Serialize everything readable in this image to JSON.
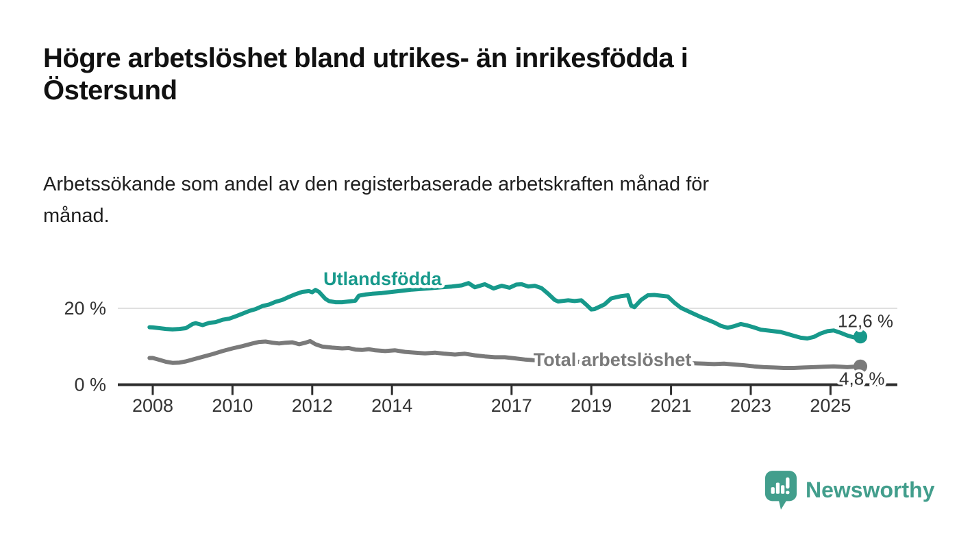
{
  "chart_data": {
    "type": "line",
    "title": "Högre arbetslöshet bland utrikes- än inrikesfödda i\nÖstersund",
    "subtitle": "Arbetssökande som andel av den registerbaserade arbetskraften månad för\nmånad.",
    "xlabel": "",
    "ylabel": "",
    "x_unit": "year (decimal, monthly samples)",
    "y_unit": "percent",
    "xlim": [
      2007.9,
      2026.7
    ],
    "ylim": [
      0,
      30
    ],
    "grid": "single horizontal gridline at 20 %",
    "legend_position": "inline labels on lines",
    "xticks": [
      {
        "value": 2008,
        "label": "2008"
      },
      {
        "value": 2010,
        "label": "2010"
      },
      {
        "value": 2012,
        "label": "2012"
      },
      {
        "value": 2014,
        "label": "2014"
      },
      {
        "value": 2017,
        "label": "2017"
      },
      {
        "value": 2019,
        "label": "2019"
      },
      {
        "value": 2021,
        "label": "2021"
      },
      {
        "value": 2023,
        "label": "2023"
      },
      {
        "value": 2025,
        "label": "2025"
      }
    ],
    "yticks": [
      {
        "value": 20,
        "label": "20 %"
      },
      {
        "value": 0,
        "label": "0 %"
      }
    ],
    "series": [
      {
        "name": "Utlandsfödda",
        "color": "#17998b",
        "end_label": "12,6 %",
        "end_value": 12.6,
        "label_anchor": {
          "x": 2012.28,
          "y": 26.1
        },
        "end_label_offset": {
          "dx": -33,
          "dy": -14
        },
        "points": [
          [
            2007.92,
            15.05
          ],
          [
            2008.0,
            15.0
          ],
          [
            2008.17,
            14.8
          ],
          [
            2008.33,
            14.6
          ],
          [
            2008.5,
            14.5
          ],
          [
            2008.67,
            14.6
          ],
          [
            2008.83,
            14.8
          ],
          [
            2009.0,
            15.9
          ],
          [
            2009.08,
            16.1
          ],
          [
            2009.25,
            15.6
          ],
          [
            2009.42,
            16.2
          ],
          [
            2009.58,
            16.4
          ],
          [
            2009.75,
            17.0
          ],
          [
            2009.92,
            17.3
          ],
          [
            2010.08,
            17.9
          ],
          [
            2010.25,
            18.6
          ],
          [
            2010.42,
            19.3
          ],
          [
            2010.58,
            19.8
          ],
          [
            2010.75,
            20.6
          ],
          [
            2010.92,
            21.0
          ],
          [
            2011.08,
            21.7
          ],
          [
            2011.25,
            22.2
          ],
          [
            2011.42,
            23.0
          ],
          [
            2011.58,
            23.7
          ],
          [
            2011.75,
            24.3
          ],
          [
            2011.92,
            24.5
          ],
          [
            2012.0,
            24.2
          ],
          [
            2012.08,
            24.8
          ],
          [
            2012.17,
            24.3
          ],
          [
            2012.33,
            22.5
          ],
          [
            2012.42,
            21.9
          ],
          [
            2012.58,
            21.6
          ],
          [
            2012.75,
            21.6
          ],
          [
            2012.92,
            21.8
          ],
          [
            2013.08,
            22.0
          ],
          [
            2013.17,
            23.3
          ],
          [
            2013.33,
            23.6
          ],
          [
            2013.5,
            23.8
          ],
          [
            2013.75,
            24.0
          ],
          [
            2014.0,
            24.3
          ],
          [
            2014.25,
            24.6
          ],
          [
            2014.5,
            24.9
          ],
          [
            2014.75,
            25.1
          ],
          [
            2015.0,
            25.3
          ],
          [
            2015.25,
            25.5
          ],
          [
            2015.5,
            25.7
          ],
          [
            2015.75,
            26.0
          ],
          [
            2015.92,
            26.6
          ],
          [
            2016.08,
            25.5
          ],
          [
            2016.33,
            26.3
          ],
          [
            2016.55,
            25.2
          ],
          [
            2016.75,
            25.9
          ],
          [
            2016.95,
            25.4
          ],
          [
            2017.12,
            26.2
          ],
          [
            2017.25,
            26.3
          ],
          [
            2017.42,
            25.7
          ],
          [
            2017.58,
            25.9
          ],
          [
            2017.75,
            25.3
          ],
          [
            2017.92,
            23.8
          ],
          [
            2018.08,
            22.2
          ],
          [
            2018.17,
            21.8
          ],
          [
            2018.42,
            22.1
          ],
          [
            2018.58,
            21.9
          ],
          [
            2018.75,
            22.1
          ],
          [
            2018.88,
            20.9
          ],
          [
            2019.0,
            19.7
          ],
          [
            2019.08,
            19.8
          ],
          [
            2019.33,
            21.0
          ],
          [
            2019.5,
            22.6
          ],
          [
            2019.75,
            23.2
          ],
          [
            2019.92,
            23.4
          ],
          [
            2020.0,
            20.7
          ],
          [
            2020.08,
            20.3
          ],
          [
            2020.25,
            22.2
          ],
          [
            2020.42,
            23.4
          ],
          [
            2020.58,
            23.5
          ],
          [
            2020.75,
            23.3
          ],
          [
            2020.92,
            23.1
          ],
          [
            2021.08,
            21.5
          ],
          [
            2021.25,
            20.1
          ],
          [
            2021.5,
            18.9
          ],
          [
            2021.75,
            17.7
          ],
          [
            2021.92,
            17.0
          ],
          [
            2022.08,
            16.3
          ],
          [
            2022.25,
            15.4
          ],
          [
            2022.42,
            14.9
          ],
          [
            2022.58,
            15.3
          ],
          [
            2022.75,
            15.9
          ],
          [
            2022.92,
            15.5
          ],
          [
            2023.08,
            15.0
          ],
          [
            2023.25,
            14.4
          ],
          [
            2023.5,
            14.1
          ],
          [
            2023.75,
            13.8
          ],
          [
            2023.92,
            13.3
          ],
          [
            2024.08,
            12.8
          ],
          [
            2024.25,
            12.3
          ],
          [
            2024.42,
            12.1
          ],
          [
            2024.58,
            12.5
          ],
          [
            2024.75,
            13.4
          ],
          [
            2024.92,
            14.0
          ],
          [
            2025.08,
            14.2
          ],
          [
            2025.25,
            13.6
          ],
          [
            2025.42,
            12.9
          ],
          [
            2025.58,
            12.4
          ],
          [
            2025.75,
            12.6
          ]
        ]
      },
      {
        "name": "Total arbetslöshet",
        "color": "#7a7a7a",
        "end_label": "4,8 %",
        "end_value": 4.8,
        "label_anchor": {
          "x": 2017.55,
          "y": 4.9
        },
        "end_label_offset": {
          "dx": -31,
          "dy": 27
        },
        "points": [
          [
            2007.92,
            7.0
          ],
          [
            2008.0,
            7.0
          ],
          [
            2008.17,
            6.5
          ],
          [
            2008.33,
            6.0
          ],
          [
            2008.5,
            5.7
          ],
          [
            2008.67,
            5.8
          ],
          [
            2008.83,
            6.1
          ],
          [
            2009.0,
            6.6
          ],
          [
            2009.25,
            7.3
          ],
          [
            2009.5,
            8.0
          ],
          [
            2009.75,
            8.8
          ],
          [
            2010.0,
            9.5
          ],
          [
            2010.25,
            10.1
          ],
          [
            2010.5,
            10.8
          ],
          [
            2010.67,
            11.2
          ],
          [
            2010.83,
            11.3
          ],
          [
            2011.0,
            11.0
          ],
          [
            2011.17,
            10.8
          ],
          [
            2011.33,
            11.0
          ],
          [
            2011.5,
            11.1
          ],
          [
            2011.67,
            10.6
          ],
          [
            2011.83,
            11.0
          ],
          [
            2011.95,
            11.4
          ],
          [
            2012.08,
            10.6
          ],
          [
            2012.25,
            10.0
          ],
          [
            2012.5,
            9.7
          ],
          [
            2012.75,
            9.5
          ],
          [
            2012.92,
            9.6
          ],
          [
            2013.08,
            9.2
          ],
          [
            2013.25,
            9.1
          ],
          [
            2013.42,
            9.3
          ],
          [
            2013.58,
            9.0
          ],
          [
            2013.83,
            8.8
          ],
          [
            2014.08,
            9.0
          ],
          [
            2014.33,
            8.6
          ],
          [
            2014.58,
            8.4
          ],
          [
            2014.83,
            8.2
          ],
          [
            2015.08,
            8.4
          ],
          [
            2015.33,
            8.1
          ],
          [
            2015.58,
            7.9
          ],
          [
            2015.83,
            8.1
          ],
          [
            2016.08,
            7.7
          ],
          [
            2016.33,
            7.4
          ],
          [
            2016.58,
            7.2
          ],
          [
            2016.83,
            7.2
          ],
          [
            2017.08,
            6.9
          ],
          [
            2017.33,
            6.6
          ],
          [
            2017.58,
            6.4
          ],
          [
            2017.83,
            6.3
          ],
          [
            2018.08,
            6.2
          ],
          [
            2018.33,
            6.1
          ],
          [
            2018.58,
            6.0
          ],
          [
            2018.83,
            6.0
          ],
          [
            2019.08,
            5.9
          ],
          [
            2019.33,
            5.8
          ],
          [
            2019.58,
            5.9
          ],
          [
            2019.83,
            6.0
          ],
          [
            2020.08,
            6.2
          ],
          [
            2020.33,
            6.3
          ],
          [
            2020.58,
            6.2
          ],
          [
            2020.83,
            6.0
          ],
          [
            2021.08,
            5.8
          ],
          [
            2021.33,
            5.7
          ],
          [
            2021.58,
            5.6
          ],
          [
            2021.83,
            5.5
          ],
          [
            2022.08,
            5.4
          ],
          [
            2022.33,
            5.5
          ],
          [
            2022.58,
            5.3
          ],
          [
            2022.83,
            5.1
          ],
          [
            2023.08,
            4.8
          ],
          [
            2023.33,
            4.6
          ],
          [
            2023.58,
            4.5
          ],
          [
            2023.83,
            4.4
          ],
          [
            2024.08,
            4.4
          ],
          [
            2024.33,
            4.5
          ],
          [
            2024.58,
            4.6
          ],
          [
            2024.83,
            4.7
          ],
          [
            2025.08,
            4.8
          ],
          [
            2025.25,
            4.7
          ],
          [
            2025.42,
            4.6
          ],
          [
            2025.58,
            4.7
          ],
          [
            2025.75,
            4.8
          ]
        ]
      }
    ],
    "colors": {
      "axis": "#2e2e2e",
      "gridline": "#e0e0e0",
      "tick_text": "#333333",
      "end_label_text": "#333333"
    }
  },
  "footer": {
    "brand": "Newsworthy",
    "logo_color": "#429e8c",
    "logo_icon": "bar-chart-speech-bubble"
  }
}
